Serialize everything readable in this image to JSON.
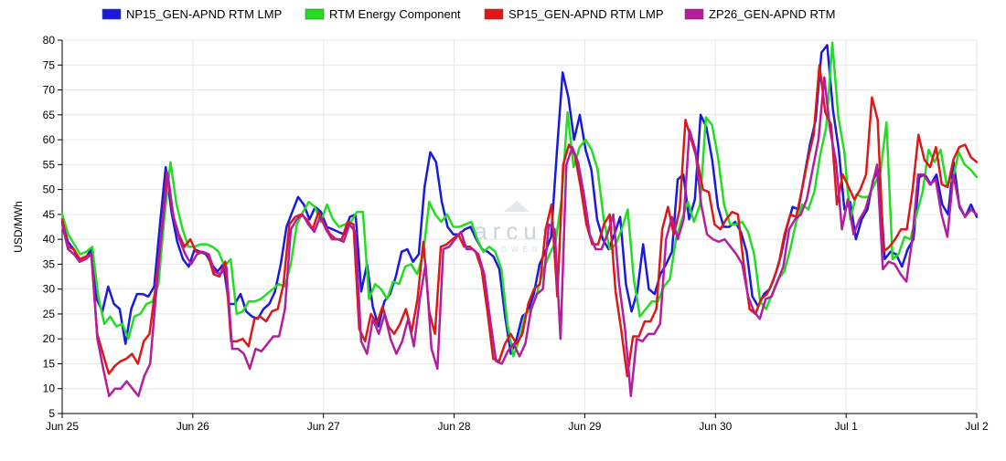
{
  "watermark": {
    "brand": "arcus",
    "sub": "POWER"
  },
  "chart_data": {
    "type": "line",
    "ylabel": "USD/MWh",
    "ylim": [
      5,
      80
    ],
    "yticks": [
      5,
      10,
      15,
      20,
      25,
      30,
      35,
      40,
      45,
      50,
      55,
      60,
      65,
      70,
      75,
      80
    ],
    "xlim": [
      0,
      7
    ],
    "xticks": [
      {
        "x": 0,
        "label": "Jun 25"
      },
      {
        "x": 1,
        "label": "Jun 26"
      },
      {
        "x": 2,
        "label": "Jun 27"
      },
      {
        "x": 3,
        "label": "Jun 28"
      },
      {
        "x": 4,
        "label": "Jun 29"
      },
      {
        "x": 5,
        "label": "Jun 30"
      },
      {
        "x": 6,
        "label": "Jul 1"
      },
      {
        "x": 7,
        "label": "Jul 2"
      }
    ],
    "grid": true,
    "legend_position": "top",
    "series": [
      {
        "name": "NP15_GEN-APND RTM LMP",
        "color": "#1a1adc",
        "values": [
          43.5,
          39.5,
          38,
          35.5,
          36,
          38,
          28,
          25.5,
          30.5,
          27,
          26,
          19,
          26,
          29,
          29,
          28.5,
          30.5,
          43,
          54.5,
          45.5,
          39.5,
          36,
          34.5,
          38,
          37.5,
          37,
          35,
          33.5,
          35,
          27,
          27,
          29,
          25.5,
          24.5,
          24,
          26,
          27,
          29.5,
          35,
          42.5,
          45.5,
          48.5,
          47,
          44,
          46.5,
          45.5,
          42.5,
          42,
          41.5,
          41,
          44.5,
          45,
          29.5,
          35,
          26.5,
          22.5,
          27.5,
          29,
          32.5,
          37.5,
          38,
          35.5,
          37,
          50.5,
          57.5,
          55.5,
          47.5,
          42.5,
          41,
          41,
          42,
          42.5,
          40,
          38,
          37.5,
          36.5,
          34,
          24.5,
          17,
          20,
          24.5,
          25.5,
          29,
          35,
          37.5,
          40.5,
          57.5,
          73.5,
          68.5,
          60,
          65,
          58,
          54,
          44,
          40,
          38,
          41,
          44.5,
          31,
          25.5,
          29.5,
          39,
          30,
          29,
          33,
          35,
          37.5,
          52,
          53,
          44,
          48,
          65,
          62.5,
          56,
          46.5,
          42.5,
          42.5,
          43.5,
          41.5,
          37.5,
          28.5,
          26.5,
          29,
          30,
          33,
          37,
          42.5,
          46.5,
          46,
          52.5,
          59,
          64,
          77.5,
          79,
          66,
          58,
          46,
          47.5,
          40,
          44,
          46,
          52,
          54,
          36,
          37.5,
          37,
          34.5,
          38,
          40,
          52.5,
          53,
          51,
          53,
          47,
          45,
          55.5,
          46.5,
          44.5,
          47,
          44.5
        ]
      },
      {
        "name": "RTM Energy Component",
        "color": "#22dd22",
        "values": [
          45,
          41,
          39,
          37,
          37.5,
          38.5,
          28.5,
          23,
          24.5,
          22.5,
          23,
          20,
          24.5,
          25,
          27,
          27.5,
          31,
          44.5,
          55.5,
          47,
          42,
          38.5,
          38.5,
          39,
          39,
          38.5,
          37.5,
          34.5,
          36,
          25,
          25.5,
          27.5,
          27.5,
          28,
          29,
          30,
          31,
          30.5,
          35,
          43,
          45.5,
          47.5,
          46.5,
          43.5,
          47,
          44,
          42.5,
          43,
          43.5,
          45.5,
          45.5,
          28,
          31,
          30,
          28,
          31.5,
          31,
          34.5,
          35,
          33,
          37,
          47.5,
          45,
          43.5,
          45,
          42.5,
          42.5,
          43,
          43.5,
          40,
          37.5,
          38.5,
          37.5,
          34,
          23,
          16.5,
          20,
          25,
          26,
          29.5,
          34,
          37,
          39.5,
          48,
          65.5,
          54.5,
          58.5,
          60,
          58,
          54,
          44,
          38,
          39,
          42,
          46,
          32,
          24.5,
          26,
          27.5,
          27.5,
          30.5,
          32,
          40,
          44,
          47.5,
          43.5,
          47,
          64.5,
          63,
          56.5,
          47,
          43,
          43,
          43.5,
          41.5,
          37,
          27.5,
          26,
          29,
          32,
          33.5,
          38,
          43.5,
          47,
          46,
          49.5,
          57,
          62.5,
          79.5,
          64.5,
          57.5,
          44,
          49,
          48.5,
          48.5,
          51,
          53.5,
          63.5,
          36,
          37,
          40.5,
          40,
          45,
          49.5,
          58,
          55.5,
          58,
          51,
          52,
          57.5,
          55,
          54,
          52.5
        ]
      },
      {
        "name": "SP15_GEN-APND RTM LMP",
        "color": "#dd1818",
        "values": [
          44,
          38.5,
          38,
          36,
          36.5,
          37,
          21,
          17,
          13,
          14.5,
          15.5,
          16,
          17,
          15,
          19.5,
          21,
          30,
          40.5,
          53.5,
          45,
          41,
          38.5,
          40,
          37.5,
          37.5,
          37,
          33,
          32.5,
          35.5,
          19.5,
          19.5,
          20,
          18.5,
          24,
          24.5,
          23.5,
          25.5,
          26,
          31,
          43,
          44.5,
          45,
          44,
          42,
          45.5,
          43,
          41,
          40,
          40,
          43.5,
          43,
          22,
          19.5,
          25,
          23,
          26.5,
          22.5,
          21,
          23,
          26,
          21.5,
          28,
          39.5,
          25.5,
          21,
          38.5,
          39,
          40,
          41,
          38.5,
          38.5,
          37.5,
          34,
          25.5,
          16,
          15.5,
          19,
          21,
          19,
          21,
          27,
          30,
          31,
          42,
          47,
          28.5,
          55,
          59,
          57,
          50.5,
          43,
          39,
          39,
          43,
          45,
          29.5,
          21.5,
          12.5,
          20.5,
          20.5,
          23.5,
          23.5,
          26,
          42,
          46.5,
          41,
          46,
          64,
          60,
          56,
          50,
          49.5,
          43,
          42,
          44,
          45.5,
          45,
          35,
          26,
          25,
          28,
          29,
          31.5,
          35,
          41,
          45,
          44.5,
          50,
          56,
          61,
          75,
          65.5,
          63,
          47,
          53,
          50.5,
          48,
          50,
          53,
          68.5,
          64,
          37.5,
          38.5,
          40,
          42,
          42,
          50,
          61,
          56,
          54.5,
          58.5,
          51,
          50.5,
          56,
          58.5,
          59,
          56.5,
          55.5
        ]
      },
      {
        "name": "ZP26_GEN-APND RTM",
        "color": "#b41e9e",
        "values": [
          43,
          38,
          37,
          35.5,
          36,
          37,
          20,
          14,
          8.5,
          10,
          10,
          11.5,
          10,
          8.5,
          12.5,
          15,
          29,
          42,
          53,
          44.5,
          40,
          37,
          35,
          37,
          37.5,
          37,
          33.5,
          33,
          34.5,
          18,
          18,
          17,
          14,
          18,
          17.5,
          19,
          20.5,
          20.5,
          26,
          42,
          44,
          45,
          43,
          41.5,
          44.5,
          42,
          40,
          40,
          39.5,
          43,
          41.5,
          19.5,
          17,
          24,
          21,
          25,
          20,
          17,
          19.5,
          24,
          18.5,
          28,
          35,
          18,
          14,
          38,
          38.5,
          40,
          41.5,
          38,
          38,
          37,
          33,
          24,
          15.5,
          15,
          17.5,
          19,
          16.5,
          19,
          26,
          29,
          30,
          43,
          42,
          20,
          55,
          58.5,
          55.5,
          49,
          41,
          38,
          38,
          41,
          45,
          31,
          22,
          8.5,
          20,
          19.5,
          21,
          21,
          23,
          40,
          44.5,
          40,
          44,
          62,
          58,
          47,
          41,
          40,
          39.5,
          40,
          38.5,
          37,
          35,
          28.5,
          25.5,
          24,
          28,
          28.5,
          31.5,
          34.5,
          42,
          44,
          45,
          48,
          54,
          60,
          72.5,
          62,
          55.5,
          42,
          48,
          41,
          44,
          46,
          50,
          55,
          34,
          35.5,
          35,
          33,
          31.5,
          40,
          53,
          53,
          51,
          52,
          45,
          40.5,
          53,
          47,
          44.5,
          46,
          45
        ]
      }
    ]
  }
}
